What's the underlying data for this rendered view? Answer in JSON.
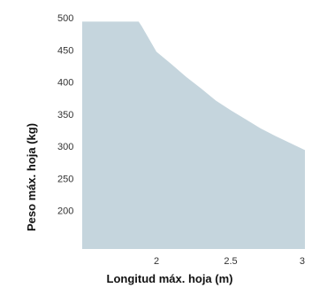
{
  "chart_data": {
    "type": "area",
    "title": "",
    "xlabel": "Longitud máx. hoja (m)",
    "ylabel": "Peso máx. hoja (kg)",
    "xlim": [
      1.5,
      3
    ],
    "ylim": [
      140,
      500
    ],
    "x_ticks": [
      2,
      2.5,
      3
    ],
    "x_tick_labels": [
      "2",
      "2.5",
      "3"
    ],
    "y_ticks": [
      200,
      250,
      300,
      350,
      400,
      450,
      500
    ],
    "y_tick_labels": [
      "200",
      "250",
      "300",
      "350",
      "400",
      "450",
      "500"
    ],
    "grid": false,
    "legend": "none",
    "fill_color": "#c5d5dd",
    "series": [
      {
        "x": [
          1.5,
          1.88,
          1.9,
          1.95,
          2.0,
          2.1,
          2.2,
          2.3,
          2.4,
          2.5,
          2.6,
          2.7,
          2.8,
          2.9,
          3.0
        ],
        "values": [
          494,
          494,
          487,
          467,
          447,
          428,
          408,
          390,
          371,
          356,
          342,
          328,
          316,
          305,
          294
        ]
      }
    ]
  }
}
